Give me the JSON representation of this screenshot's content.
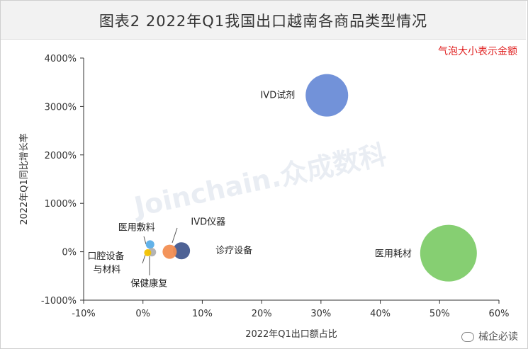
{
  "title": "图表2  2022年Q1我国出口越南各商品类型情况",
  "note": "气泡大小表示金额",
  "watermark": "Joinchain.众成数科",
  "source_mark": "械企必读",
  "chart_data": {
    "type": "scatter",
    "xlabel": "2022年Q1出口额占比",
    "ylabel": "2022年Q1同比增长率",
    "xlim": [
      -10,
      60
    ],
    "ylim": [
      -1000,
      4000
    ],
    "x_ticks": [
      "-10%",
      "0%",
      "10%",
      "20%",
      "30%",
      "40%",
      "50%",
      "60%"
    ],
    "y_ticks": [
      "4000%",
      "3000%",
      "2000%",
      "1000%",
      "0%",
      "-1000%"
    ],
    "points": [
      {
        "label": "IVD试剂",
        "x": 31,
        "y": 3230,
        "size": 30,
        "color": "#6a8cd7"
      },
      {
        "label": "医用耗材",
        "x": 51.5,
        "y": -30,
        "size": 40,
        "color": "#7fcc6a"
      },
      {
        "label": "诊疗设备",
        "x": 6.5,
        "y": 20,
        "size": 12,
        "color": "#445a8f"
      },
      {
        "label": "IVD仪器",
        "x": 4.5,
        "y": 0,
        "size": 10,
        "color": "#f28e52"
      },
      {
        "label": "医用敷料",
        "x": 1.2,
        "y": 150,
        "size": 6,
        "color": "#5aaee8"
      },
      {
        "label": "保健康复",
        "x": 1.5,
        "y": -10,
        "size": 6,
        "color": "#b0b0b0"
      },
      {
        "label": "口腔设备与材料",
        "x": 0.8,
        "y": -20,
        "size": 5,
        "color": "#f2c200"
      }
    ]
  }
}
